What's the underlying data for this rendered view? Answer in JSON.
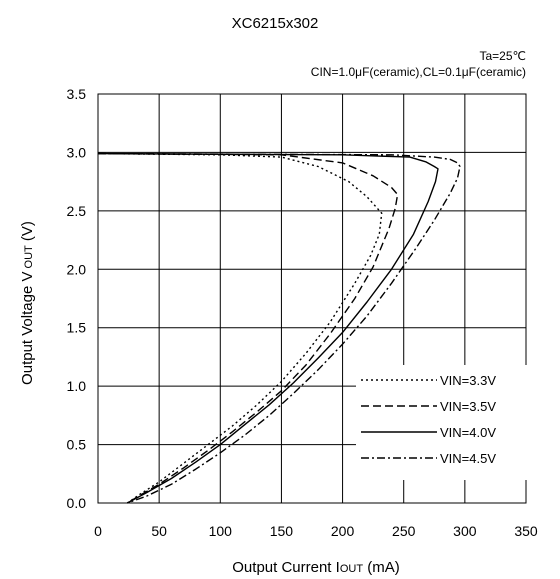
{
  "chart_data": {
    "type": "line",
    "title": "XC6215x302",
    "subtitle_lines": [
      "Ta=25℃",
      "CIN=1.0μF(ceramic),CL=0.1μF(ceramic)"
    ],
    "xlabel": {
      "main": "Output Current I",
      "sub": "OUT",
      "unit": " (mA)"
    },
    "ylabel": {
      "main": "Output Voltage V",
      "sub": " OUT",
      "unit": " (V)"
    },
    "xlim": [
      0,
      350
    ],
    "ylim": [
      0,
      3.5
    ],
    "xticks": [
      0,
      50,
      100,
      150,
      200,
      250,
      300,
      350
    ],
    "xtick_labels": [
      "0",
      "50",
      "100",
      "150",
      "200",
      "250",
      "300",
      "350"
    ],
    "yticks": [
      0,
      0.5,
      1,
      1.5,
      2,
      2.5,
      3,
      3.5
    ],
    "ytick_labels": [
      "0.0",
      "0.5",
      "1.0",
      "1.5",
      "2.0",
      "2.5",
      "3.0",
      "3.5"
    ],
    "grid": true,
    "legend_position": "bottom-right",
    "series": [
      {
        "name": "VIN=3.3V",
        "dash": "dotted",
        "x": [
          0,
          100,
          150,
          180,
          205,
          220,
          232,
          230,
          223,
          210,
          190,
          170,
          150,
          130,
          110,
          90,
          70,
          50,
          35,
          24
        ],
        "y": [
          2.99,
          2.98,
          2.96,
          2.88,
          2.75,
          2.62,
          2.48,
          2.3,
          2.12,
          1.88,
          1.55,
          1.28,
          1.04,
          0.84,
          0.66,
          0.5,
          0.34,
          0.18,
          0.08,
          0.0
        ]
      },
      {
        "name": "VIN=3.5V",
        "dash": "dashed",
        "x": [
          0,
          150,
          200,
          225,
          240,
          245,
          243,
          238,
          225,
          210,
          190,
          170,
          150,
          130,
          110,
          90,
          70,
          50,
          35,
          24
        ],
        "y": [
          2.99,
          2.98,
          2.91,
          2.8,
          2.7,
          2.64,
          2.52,
          2.35,
          2.02,
          1.75,
          1.45,
          1.18,
          0.96,
          0.78,
          0.61,
          0.45,
          0.3,
          0.16,
          0.07,
          0.0
        ]
      },
      {
        "name": "VIN=4.0V",
        "dash": "solid",
        "x": [
          0,
          200,
          255,
          268,
          275,
          278,
          276,
          270,
          258,
          240,
          220,
          200,
          180,
          160,
          140,
          120,
          100,
          80,
          60,
          40,
          24
        ],
        "y": [
          2.99,
          2.98,
          2.96,
          2.92,
          2.88,
          2.86,
          2.75,
          2.58,
          2.3,
          2.0,
          1.72,
          1.46,
          1.24,
          1.03,
          0.84,
          0.67,
          0.5,
          0.35,
          0.21,
          0.09,
          0.0
        ]
      },
      {
        "name": "VIN=4.5V",
        "dash": "dashdot",
        "x": [
          0,
          240,
          275,
          288,
          294,
          296,
          294,
          288,
          275,
          260,
          240,
          220,
          200,
          180,
          160,
          140,
          120,
          100,
          80,
          60,
          40,
          24
        ],
        "y": [
          2.99,
          2.98,
          2.96,
          2.94,
          2.91,
          2.88,
          2.78,
          2.65,
          2.42,
          2.18,
          1.88,
          1.6,
          1.36,
          1.14,
          0.94,
          0.75,
          0.58,
          0.43,
          0.29,
          0.16,
          0.06,
          0.0
        ]
      }
    ]
  }
}
